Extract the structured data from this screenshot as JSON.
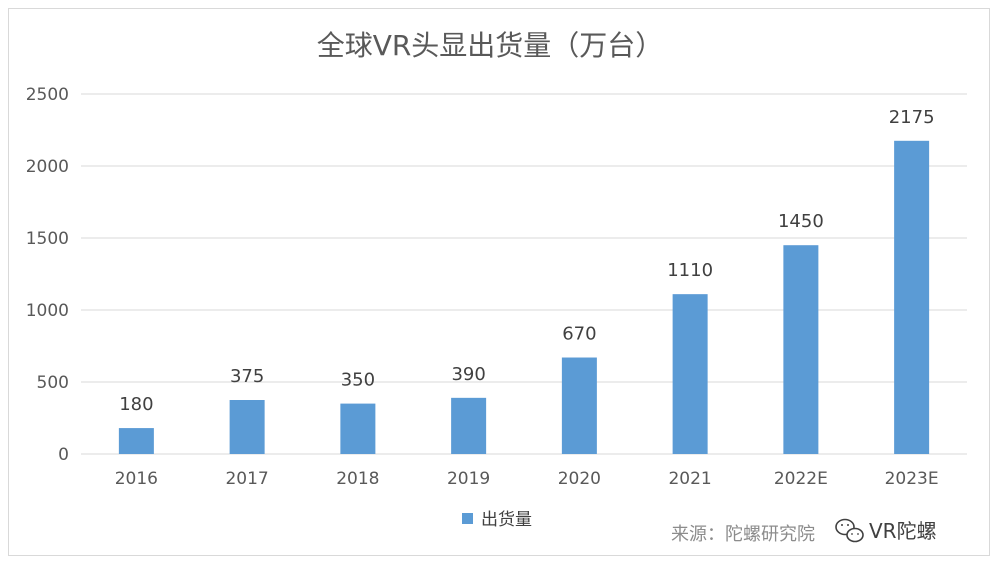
{
  "chart_data": {
    "type": "bar",
    "title": "全球VR头显出货量（万台）",
    "categories": [
      "2016",
      "2017",
      "2018",
      "2019",
      "2020",
      "2021",
      "2022E",
      "2023E"
    ],
    "series": [
      {
        "name": "出货量",
        "values": [
          180,
          375,
          350,
          390,
          670,
          1110,
          1450,
          2175
        ],
        "color": "#5b9bd5"
      }
    ],
    "yticks": [
      "0",
      "500",
      "1000",
      "1500",
      "2000",
      "2500"
    ],
    "ylim": [
      0,
      2500
    ],
    "grid": true,
    "legend_position": "bottom-center"
  },
  "source_note": "来源：陀螺研究院",
  "watermark": {
    "icon": "wechat-icon",
    "text": "VR陀螺"
  },
  "colors": {
    "bar": "#5b9bd5",
    "grid": "#d9d9d9",
    "axis_text": "#595959"
  }
}
